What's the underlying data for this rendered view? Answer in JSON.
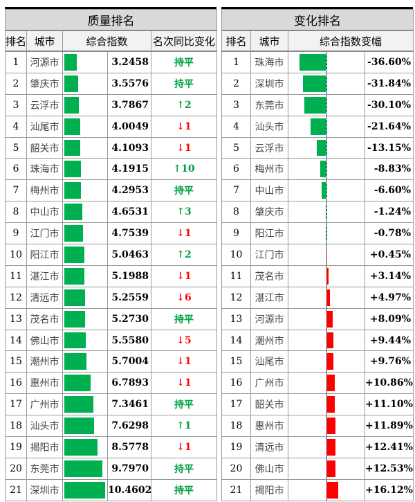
{
  "colors": {
    "green": "#00b050",
    "red": "#ff0000",
    "text_green": "#00a040"
  },
  "left": {
    "title": "质量排名",
    "headers": [
      "排名",
      "城市",
      "综合指数",
      "名次同比变化"
    ],
    "rows": [
      [
        "1",
        "河源市",
        "3.2458",
        "持平"
      ],
      [
        "2",
        "肇庆市",
        "3.5576",
        "持平"
      ],
      [
        "3",
        "云浮市",
        "3.7867",
        "↑2"
      ],
      [
        "4",
        "汕尾市",
        "4.0049",
        "↓1"
      ],
      [
        "5",
        "韶关市",
        "4.1093",
        "↓1"
      ],
      [
        "6",
        "珠海市",
        "4.1915",
        "↑10"
      ],
      [
        "7",
        "梅州市",
        "4.2953",
        "持平"
      ],
      [
        "8",
        "中山市",
        "4.6531",
        "↑3"
      ],
      [
        "9",
        "江门市",
        "4.7539",
        "↓1"
      ],
      [
        "10",
        "阳江市",
        "5.0463",
        "↑2"
      ],
      [
        "11",
        "湛江市",
        "5.1988",
        "↓1"
      ],
      [
        "12",
        "清远市",
        "5.2559",
        "↓6"
      ],
      [
        "13",
        "茂名市",
        "5.2730",
        "持平"
      ],
      [
        "14",
        "佛山市",
        "5.5580",
        "↓5"
      ],
      [
        "15",
        "潮州市",
        "5.7004",
        "↓1"
      ],
      [
        "16",
        "惠州市",
        "6.7893",
        "↓1"
      ],
      [
        "17",
        "广州市",
        "7.3461",
        "持平"
      ],
      [
        "18",
        "汕头市",
        "7.6298",
        "↑1"
      ],
      [
        "19",
        "揭阳市",
        "8.5778",
        "↓1"
      ],
      [
        "20",
        "东莞市",
        "9.7970",
        "持平"
      ],
      [
        "21",
        "深圳市",
        "10.4602",
        "持平"
      ]
    ]
  },
  "right": {
    "title": "变化排名",
    "headers": [
      "排名",
      "城市",
      "综合指数变幅"
    ],
    "rows": [
      [
        "1",
        "珠海市",
        "-36.60%"
      ],
      [
        "2",
        "深圳市",
        "-31.84%"
      ],
      [
        "3",
        "东莞市",
        "-30.10%"
      ],
      [
        "4",
        "汕头市",
        "-21.64%"
      ],
      [
        "5",
        "云浮市",
        "-13.15%"
      ],
      [
        "6",
        "梅州市",
        "-8.83%"
      ],
      [
        "7",
        "中山市",
        "-6.60%"
      ],
      [
        "8",
        "肇庆市",
        "-1.24%"
      ],
      [
        "9",
        "阳江市",
        "-0.78%"
      ],
      [
        "10",
        "江门市",
        "+0.45%"
      ],
      [
        "11",
        "茂名市",
        "+3.14%"
      ],
      [
        "12",
        "湛江市",
        "+4.97%"
      ],
      [
        "13",
        "河源市",
        "+8.09%"
      ],
      [
        "14",
        "潮州市",
        "+9.44%"
      ],
      [
        "15",
        "汕尾市",
        "+9.76%"
      ],
      [
        "16",
        "广州市",
        "+10.86%"
      ],
      [
        "17",
        "韶关市",
        "+11.10%"
      ],
      [
        "18",
        "惠州市",
        "+11.89%"
      ],
      [
        "19",
        "清远市",
        "+12.41%"
      ],
      [
        "20",
        "佛山市",
        "+12.53%"
      ],
      [
        "21",
        "揭阳市",
        "+16.12%"
      ]
    ]
  }
}
